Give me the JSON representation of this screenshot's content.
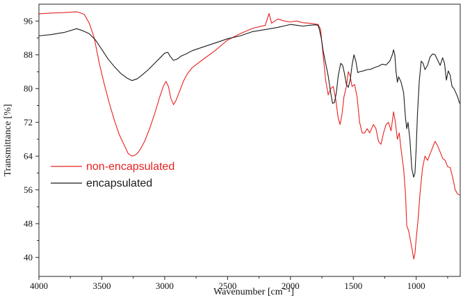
{
  "chart_data": {
    "type": "line",
    "xlabel": "Wavenumber [cm⁻¹]",
    "ylabel": "Transmittance [%]",
    "xlim": [
      4000,
      650
    ],
    "ylim": [
      35.5,
      100
    ],
    "x_reversed": true,
    "grid": false,
    "legend_position": "left-center",
    "x_ticks": [
      4000,
      3500,
      3000,
      2500,
      2000,
      1500,
      1000
    ],
    "y_ticks": [
      40,
      48,
      56,
      64,
      72,
      80,
      88,
      96
    ],
    "series": [
      {
        "name": "non-encapsulated",
        "color": "#e8201f",
        "points": [
          [
            4000,
            97.7
          ],
          [
            3900,
            97.9
          ],
          [
            3800,
            98.0
          ],
          [
            3700,
            98.2
          ],
          [
            3640,
            97.6
          ],
          [
            3600,
            95.5
          ],
          [
            3560,
            92
          ],
          [
            3520,
            86
          ],
          [
            3480,
            81
          ],
          [
            3440,
            76.5
          ],
          [
            3400,
            72.5
          ],
          [
            3360,
            69
          ],
          [
            3320,
            66.5
          ],
          [
            3290,
            64.6
          ],
          [
            3260,
            64
          ],
          [
            3230,
            64.3
          ],
          [
            3200,
            65.3
          ],
          [
            3160,
            67.5
          ],
          [
            3120,
            70.5
          ],
          [
            3080,
            74
          ],
          [
            3040,
            78
          ],
          [
            3010,
            80.6
          ],
          [
            2990,
            81.7
          ],
          [
            2970,
            80.5
          ],
          [
            2950,
            77.6
          ],
          [
            2930,
            76.2
          ],
          [
            2910,
            77.2
          ],
          [
            2880,
            79.5
          ],
          [
            2850,
            81.8
          ],
          [
            2820,
            83.5
          ],
          [
            2780,
            85
          ],
          [
            2700,
            86.8
          ],
          [
            2600,
            89
          ],
          [
            2500,
            91.5
          ],
          [
            2400,
            93
          ],
          [
            2300,
            94.3
          ],
          [
            2200,
            95
          ],
          [
            2170,
            97.8
          ],
          [
            2150,
            95.5
          ],
          [
            2100,
            96.5
          ],
          [
            2050,
            96
          ],
          [
            2000,
            95.8
          ],
          [
            1950,
            96
          ],
          [
            1900,
            95.6
          ],
          [
            1850,
            95.5
          ],
          [
            1780,
            95.2
          ],
          [
            1760,
            94
          ],
          [
            1740,
            88
          ],
          [
            1720,
            82
          ],
          [
            1700,
            78.5
          ],
          [
            1680,
            80
          ],
          [
            1660,
            80.5
          ],
          [
            1640,
            77.5
          ],
          [
            1620,
            73
          ],
          [
            1605,
            71.5
          ],
          [
            1590,
            74
          ],
          [
            1575,
            78
          ],
          [
            1555,
            80.5
          ],
          [
            1540,
            84
          ],
          [
            1525,
            83
          ],
          [
            1510,
            80.5
          ],
          [
            1490,
            81
          ],
          [
            1470,
            78
          ],
          [
            1450,
            72
          ],
          [
            1430,
            69.5
          ],
          [
            1410,
            69.5
          ],
          [
            1390,
            70.5
          ],
          [
            1370,
            69.5
          ],
          [
            1340,
            71.5
          ],
          [
            1320,
            70.5
          ],
          [
            1300,
            67.5
          ],
          [
            1280,
            66.8
          ],
          [
            1260,
            69.5
          ],
          [
            1240,
            71.5
          ],
          [
            1220,
            72
          ],
          [
            1200,
            70
          ],
          [
            1180,
            74.5
          ],
          [
            1165,
            72
          ],
          [
            1150,
            68
          ],
          [
            1135,
            69.5
          ],
          [
            1120,
            65.5
          ],
          [
            1100,
            61
          ],
          [
            1085,
            55
          ],
          [
            1075,
            47.5
          ],
          [
            1060,
            46.3
          ],
          [
            1045,
            44
          ],
          [
            1030,
            41.5
          ],
          [
            1020,
            39.6
          ],
          [
            1010,
            41
          ],
          [
            1000,
            44.5
          ],
          [
            985,
            49
          ],
          [
            970,
            55
          ],
          [
            950,
            61
          ],
          [
            930,
            64
          ],
          [
            910,
            63
          ],
          [
            890,
            64.5
          ],
          [
            870,
            66
          ],
          [
            850,
            67.5
          ],
          [
            830,
            66.5
          ],
          [
            810,
            65
          ],
          [
            790,
            63.5
          ],
          [
            770,
            63
          ],
          [
            750,
            61.5
          ],
          [
            730,
            61.3
          ],
          [
            710,
            59
          ],
          [
            690,
            56
          ],
          [
            670,
            55
          ],
          [
            655,
            54.8
          ]
        ]
      },
      {
        "name": "encapsulated",
        "color": "#1a1a1a",
        "points": [
          [
            4000,
            92.5
          ],
          [
            3900,
            92.8
          ],
          [
            3800,
            93.3
          ],
          [
            3700,
            94.2
          ],
          [
            3650,
            93.7
          ],
          [
            3600,
            93
          ],
          [
            3550,
            91.5
          ],
          [
            3500,
            89.3
          ],
          [
            3450,
            87
          ],
          [
            3400,
            85.2
          ],
          [
            3350,
            83.6
          ],
          [
            3300,
            82.5
          ],
          [
            3260,
            81.9
          ],
          [
            3220,
            82.3
          ],
          [
            3180,
            83.2
          ],
          [
            3130,
            84.5
          ],
          [
            3080,
            86
          ],
          [
            3030,
            87.5
          ],
          [
            3000,
            88.4
          ],
          [
            2975,
            88.6
          ],
          [
            2955,
            87.6
          ],
          [
            2930,
            86.7
          ],
          [
            2900,
            87
          ],
          [
            2870,
            87.7
          ],
          [
            2830,
            88.2
          ],
          [
            2780,
            89
          ],
          [
            2700,
            89.8
          ],
          [
            2600,
            90.8
          ],
          [
            2500,
            91.8
          ],
          [
            2400,
            92.5
          ],
          [
            2300,
            93.5
          ],
          [
            2200,
            94
          ],
          [
            2100,
            94.5
          ],
          [
            2000,
            95.2
          ],
          [
            1950,
            95
          ],
          [
            1900,
            94.8
          ],
          [
            1850,
            95
          ],
          [
            1800,
            95.1
          ],
          [
            1780,
            95
          ],
          [
            1770,
            94
          ],
          [
            1755,
            92
          ],
          [
            1740,
            89
          ],
          [
            1720,
            86
          ],
          [
            1700,
            83
          ],
          [
            1680,
            79
          ],
          [
            1665,
            76.5
          ],
          [
            1650,
            76.7
          ],
          [
            1635,
            79
          ],
          [
            1620,
            83
          ],
          [
            1600,
            86
          ],
          [
            1585,
            85.5
          ],
          [
            1570,
            83.5
          ],
          [
            1555,
            81
          ],
          [
            1540,
            80.3
          ],
          [
            1525,
            82
          ],
          [
            1510,
            85.5
          ],
          [
            1495,
            88
          ],
          [
            1480,
            86.5
          ],
          [
            1465,
            83.8
          ],
          [
            1450,
            84
          ],
          [
            1420,
            84.2
          ],
          [
            1390,
            84.5
          ],
          [
            1360,
            84.6
          ],
          [
            1330,
            85
          ],
          [
            1300,
            85.3
          ],
          [
            1270,
            85.8
          ],
          [
            1240,
            85.6
          ],
          [
            1210,
            86.5
          ],
          [
            1190,
            88
          ],
          [
            1180,
            89.2
          ],
          [
            1170,
            88
          ],
          [
            1160,
            84
          ],
          [
            1150,
            81.5
          ],
          [
            1140,
            82.8
          ],
          [
            1120,
            81.5
          ],
          [
            1100,
            79
          ],
          [
            1085,
            73
          ],
          [
            1075,
            70.5
          ],
          [
            1065,
            72
          ],
          [
            1050,
            68
          ],
          [
            1035,
            61
          ],
          [
            1020,
            59
          ],
          [
            1010,
            60
          ],
          [
            1000,
            66
          ],
          [
            990,
            74
          ],
          [
            975,
            82
          ],
          [
            960,
            86.5
          ],
          [
            945,
            86
          ],
          [
            930,
            84.5
          ],
          [
            910,
            85.5
          ],
          [
            890,
            87.5
          ],
          [
            870,
            88.2
          ],
          [
            850,
            88
          ],
          [
            830,
            86.8
          ],
          [
            810,
            85.5
          ],
          [
            790,
            87.3
          ],
          [
            775,
            86
          ],
          [
            760,
            82
          ],
          [
            745,
            84.2
          ],
          [
            730,
            83.2
          ],
          [
            715,
            80.5
          ],
          [
            700,
            80
          ],
          [
            685,
            79
          ],
          [
            670,
            78
          ],
          [
            655,
            76.5
          ]
        ]
      }
    ]
  }
}
